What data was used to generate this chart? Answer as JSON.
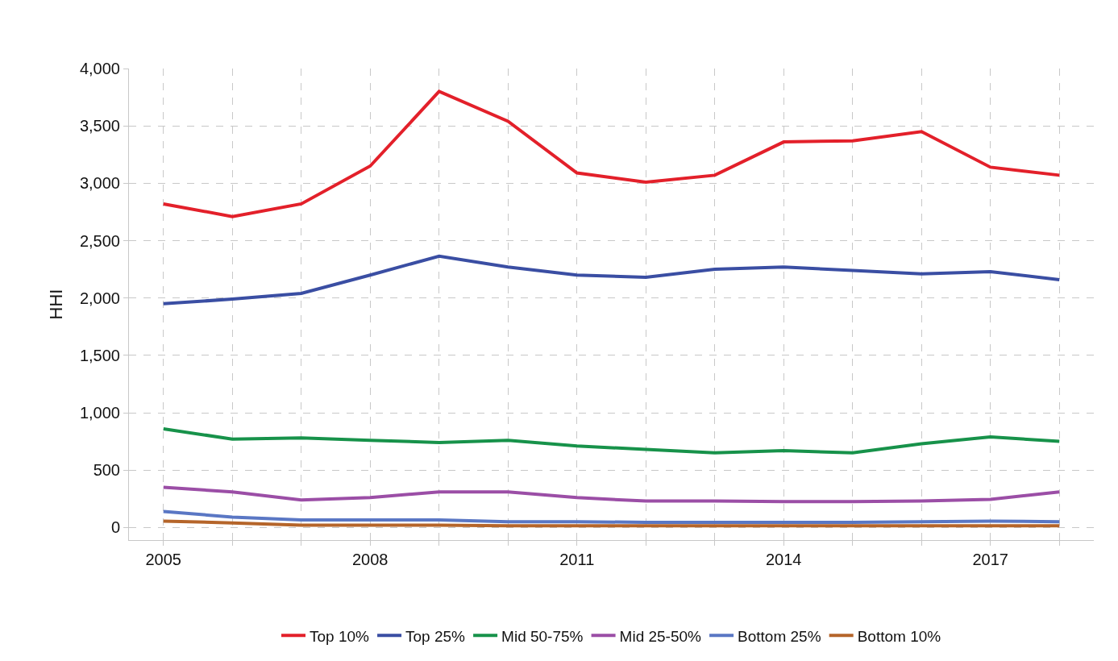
{
  "chart_data": {
    "type": "line",
    "ylabel": "HHI",
    "x": [
      2005,
      2006,
      2007,
      2008,
      2009,
      2010,
      2011,
      2012,
      2013,
      2014,
      2015,
      2016,
      2017,
      2018
    ],
    "series": [
      {
        "name": "Top 10%",
        "color": "#e3202a",
        "values": [
          2820,
          2710,
          2820,
          3150,
          3800,
          3540,
          3090,
          3010,
          3070,
          3360,
          3370,
          3450,
          3140,
          3070
        ]
      },
      {
        "name": "Top 25%",
        "color": "#3a4ea3",
        "values": [
          1950,
          1990,
          2040,
          2200,
          2365,
          2270,
          2200,
          2180,
          2250,
          2270,
          2240,
          2210,
          2230,
          2160
        ]
      },
      {
        "name": "Mid 50-75%",
        "color": "#17924a",
        "values": [
          860,
          770,
          780,
          760,
          740,
          760,
          710,
          680,
          650,
          670,
          650,
          730,
          790,
          750
        ]
      },
      {
        "name": "Mid 25-50%",
        "color": "#9b4ea6",
        "values": [
          350,
          310,
          240,
          260,
          310,
          310,
          260,
          230,
          230,
          225,
          225,
          230,
          245,
          310
        ]
      },
      {
        "name": "Bottom 25%",
        "color": "#5a77c4",
        "values": [
          140,
          90,
          65,
          65,
          65,
          50,
          50,
          45,
          45,
          45,
          45,
          50,
          55,
          50
        ]
      },
      {
        "name": "Bottom 10%",
        "color": "#b5652a",
        "values": [
          55,
          40,
          20,
          20,
          20,
          15,
          15,
          15,
          15,
          15,
          15,
          15,
          15,
          15
        ]
      }
    ],
    "xlim": [
      2004.5,
      2018.5
    ],
    "xticks": [
      2005,
      {
        "value": 2006,
        "label": null
      },
      {
        "value": 2007,
        "label": null
      },
      2008,
      {
        "value": 2009,
        "label": null
      },
      {
        "value": 2010,
        "label": null
      },
      2011,
      {
        "value": 2012,
        "label": null
      },
      {
        "value": 2013,
        "label": null
      },
      2014,
      {
        "value": 2015,
        "label": null
      },
      {
        "value": 2016,
        "label": null
      },
      2017,
      {
        "value": 2018,
        "label": null
      }
    ],
    "ylim": [
      -110,
      4000
    ],
    "yticks": [
      {
        "value": 0,
        "label": "0"
      },
      {
        "value": 500,
        "label": "500"
      },
      {
        "value": 1000,
        "label": "1,000"
      },
      {
        "value": 1500,
        "label": "1,500"
      },
      {
        "value": 2000,
        "label": "2,000"
      },
      {
        "value": 2500,
        "label": "2,500"
      },
      {
        "value": 3000,
        "label": "3,000"
      },
      {
        "value": 3500,
        "label": "3,500"
      },
      {
        "value": 4000,
        "label": "4,000"
      }
    ],
    "grid": true,
    "legend": "bottom",
    "marker": "none",
    "line_style": "solid"
  }
}
